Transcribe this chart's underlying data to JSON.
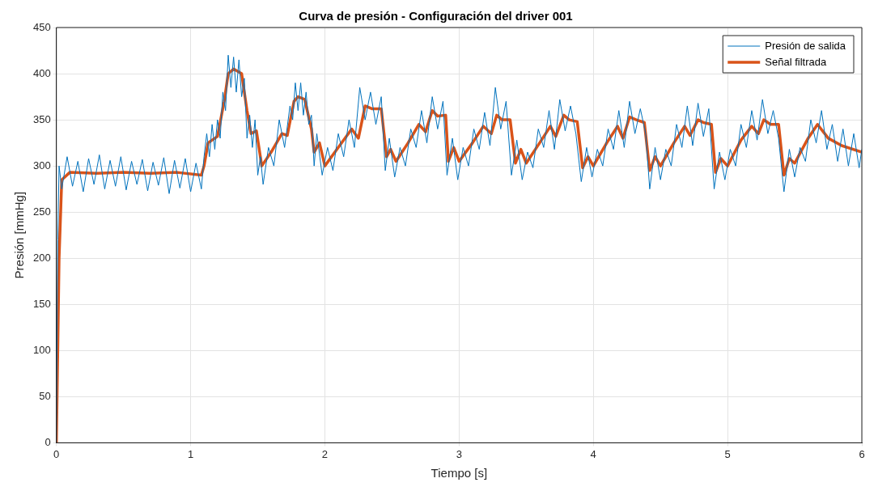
{
  "chart_data": {
    "type": "line",
    "title": "Curva de presión - Configuración del driver 001",
    "xlabel": "Tiempo [s]",
    "ylabel": "Presión [mmHg]",
    "xlim": [
      0,
      6
    ],
    "xticks": [
      0,
      1,
      2,
      3,
      4,
      5,
      6
    ],
    "ylim": [
      0,
      450
    ],
    "yticks": [
      0,
      50,
      100,
      150,
      200,
      250,
      300,
      350,
      400,
      450
    ],
    "grid": true,
    "legend": "top right",
    "marker": "none",
    "line_style": "solid",
    "series": [
      {
        "name": "Presión de salida",
        "color": "#0072bd",
        "x": [
          0,
          0.01,
          0.02,
          0.04,
          0.08,
          0.12,
          0.16,
          0.2,
          0.24,
          0.28,
          0.32,
          0.36,
          0.4,
          0.44,
          0.48,
          0.52,
          0.56,
          0.6,
          0.64,
          0.68,
          0.72,
          0.76,
          0.8,
          0.84,
          0.88,
          0.92,
          0.96,
          1.0,
          1.04,
          1.08,
          1.1,
          1.12,
          1.14,
          1.16,
          1.18,
          1.2,
          1.22,
          1.24,
          1.26,
          1.28,
          1.3,
          1.32,
          1.34,
          1.36,
          1.38,
          1.4,
          1.42,
          1.44,
          1.46,
          1.48,
          1.5,
          1.52,
          1.54,
          1.58,
          1.62,
          1.66,
          1.7,
          1.74,
          1.76,
          1.78,
          1.8,
          1.82,
          1.84,
          1.86,
          1.88,
          1.9,
          1.92,
          1.94,
          1.98,
          2.02,
          2.06,
          2.1,
          2.14,
          2.18,
          2.22,
          2.26,
          2.3,
          2.34,
          2.38,
          2.42,
          2.45,
          2.48,
          2.52,
          2.56,
          2.6,
          2.64,
          2.68,
          2.72,
          2.76,
          2.8,
          2.84,
          2.88,
          2.91,
          2.95,
          2.99,
          3.03,
          3.07,
          3.11,
          3.15,
          3.19,
          3.23,
          3.27,
          3.31,
          3.35,
          3.39,
          3.43,
          3.47,
          3.51,
          3.55,
          3.59,
          3.63,
          3.67,
          3.71,
          3.75,
          3.79,
          3.83,
          3.87,
          3.91,
          3.95,
          3.99,
          4.03,
          4.07,
          4.11,
          4.15,
          4.19,
          4.23,
          4.27,
          4.31,
          4.35,
          4.39,
          4.42,
          4.46,
          4.5,
          4.54,
          4.58,
          4.62,
          4.66,
          4.7,
          4.74,
          4.78,
          4.82,
          4.86,
          4.9,
          4.94,
          4.98,
          5.02,
          5.06,
          5.1,
          5.14,
          5.18,
          5.22,
          5.26,
          5.3,
          5.34,
          5.38,
          5.42,
          5.46,
          5.5,
          5.54,
          5.58,
          5.62,
          5.66,
          5.7,
          5.74,
          5.78,
          5.82,
          5.86,
          5.9,
          5.94,
          5.98,
          6.0
        ],
        "values": [
          0,
          220,
          300,
          275,
          310,
          278,
          305,
          272,
          308,
          280,
          312,
          275,
          306,
          278,
          310,
          274,
          305,
          280,
          307,
          273,
          304,
          279,
          309,
          270,
          306,
          276,
          308,
          272,
          303,
          275,
          310,
          335,
          310,
          345,
          318,
          350,
          330,
          380,
          360,
          420,
          385,
          418,
          380,
          415,
          375,
          395,
          330,
          355,
          320,
          350,
          290,
          310,
          280,
          320,
          300,
          350,
          320,
          365,
          350,
          390,
          360,
          390,
          355,
          380,
          345,
          355,
          300,
          335,
          290,
          320,
          295,
          335,
          310,
          350,
          320,
          385,
          350,
          380,
          345,
          375,
          295,
          330,
          288,
          320,
          300,
          340,
          320,
          360,
          325,
          375,
          340,
          370,
          290,
          330,
          285,
          320,
          300,
          340,
          318,
          358,
          322,
          385,
          340,
          370,
          290,
          328,
          285,
          315,
          298,
          340,
          320,
          360,
          318,
          372,
          338,
          365,
          335,
          283,
          320,
          288,
          318,
          300,
          340,
          318,
          360,
          320,
          370,
          335,
          362,
          335,
          275,
          320,
          285,
          318,
          300,
          345,
          320,
          365,
          322,
          368,
          332,
          362,
          275,
          315,
          285,
          318,
          300,
          345,
          320,
          360,
          328,
          372,
          335,
          360,
          330,
          272,
          318,
          288,
          320,
          305,
          350,
          325,
          360,
          318,
          345,
          305,
          340,
          300,
          335,
          298,
          318
        ]
      },
      {
        "name": "Señal filtrada",
        "color": "#d95319",
        "x": [
          0,
          0.02,
          0.04,
          0.1,
          0.3,
          0.5,
          0.7,
          0.9,
          1.08,
          1.1,
          1.13,
          1.2,
          1.25,
          1.28,
          1.32,
          1.38,
          1.42,
          1.45,
          1.49,
          1.53,
          1.6,
          1.68,
          1.72,
          1.77,
          1.8,
          1.85,
          1.9,
          1.92,
          1.96,
          2.0,
          2.1,
          2.2,
          2.25,
          2.3,
          2.35,
          2.42,
          2.46,
          2.49,
          2.53,
          2.62,
          2.7,
          2.75,
          2.8,
          2.84,
          2.9,
          2.92,
          2.96,
          3.0,
          3.1,
          3.18,
          3.24,
          3.28,
          3.32,
          3.38,
          3.42,
          3.46,
          3.5,
          3.6,
          3.68,
          3.72,
          3.78,
          3.82,
          3.88,
          3.92,
          3.96,
          4.0,
          4.1,
          4.18,
          4.22,
          4.27,
          4.32,
          4.38,
          4.42,
          4.46,
          4.5,
          4.6,
          4.68,
          4.72,
          4.78,
          4.82,
          4.88,
          4.91,
          4.95,
          5.0,
          5.1,
          5.18,
          5.23,
          5.27,
          5.32,
          5.38,
          5.42,
          5.46,
          5.5,
          5.6,
          5.67,
          5.75,
          5.85,
          6.0
        ],
        "values": [
          0,
          200,
          285,
          293,
          292,
          293,
          292,
          293,
          290,
          300,
          325,
          332,
          370,
          400,
          405,
          400,
          360,
          335,
          338,
          300,
          315,
          335,
          333,
          370,
          375,
          372,
          340,
          315,
          325,
          300,
          320,
          340,
          330,
          365,
          362,
          362,
          310,
          318,
          305,
          325,
          345,
          337,
          360,
          354,
          355,
          305,
          320,
          305,
          325,
          343,
          335,
          355,
          350,
          350,
          303,
          318,
          303,
          325,
          343,
          332,
          355,
          350,
          348,
          298,
          310,
          300,
          325,
          343,
          330,
          353,
          350,
          347,
          295,
          310,
          300,
          325,
          343,
          333,
          350,
          347,
          345,
          293,
          308,
          300,
          328,
          343,
          335,
          350,
          345,
          345,
          290,
          308,
          303,
          330,
          345,
          330,
          322,
          315
        ]
      }
    ]
  }
}
